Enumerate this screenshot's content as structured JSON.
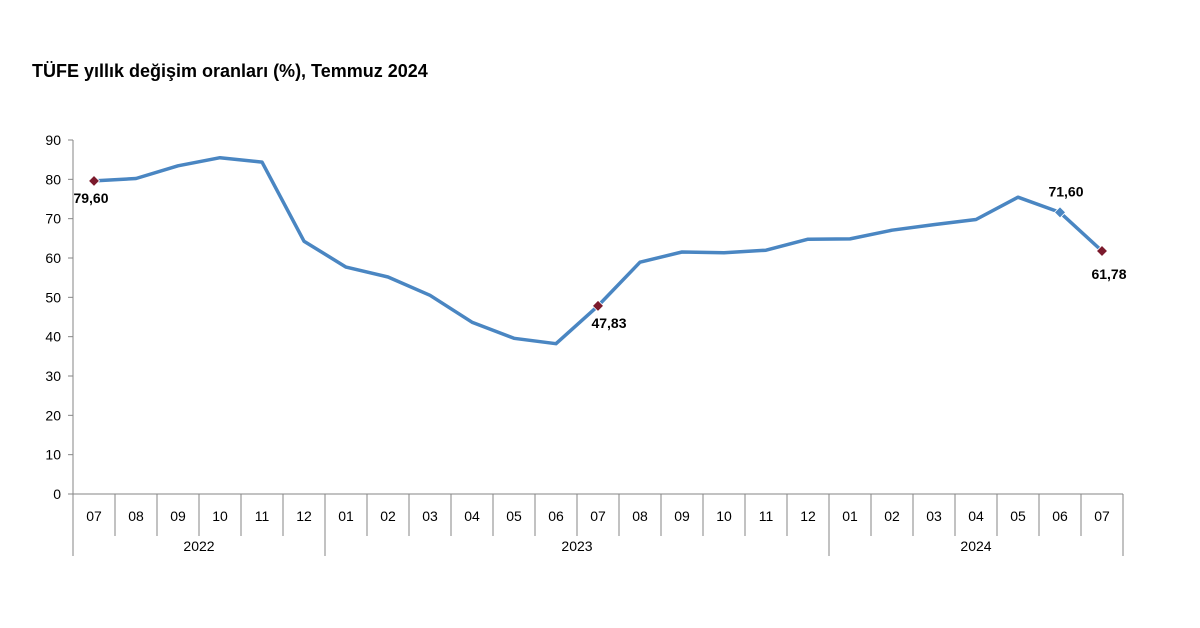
{
  "chart_data": {
    "type": "line",
    "title": "TÜFE yıllık değişim oranları (%), Temmuz 2024",
    "xlabel": "",
    "ylabel": "",
    "ylim": [
      0,
      90
    ],
    "yticks": [
      0,
      10,
      20,
      30,
      40,
      50,
      60,
      70,
      80,
      90
    ],
    "grid": false,
    "legend": "none",
    "categories": [
      "07",
      "08",
      "09",
      "10",
      "11",
      "12",
      "01",
      "02",
      "03",
      "04",
      "05",
      "06",
      "07",
      "08",
      "09",
      "10",
      "11",
      "12",
      "01",
      "02",
      "03",
      "04",
      "05",
      "06",
      "07"
    ],
    "years": [
      {
        "label": "2022",
        "count": 6
      },
      {
        "label": "2023",
        "count": 12
      },
      {
        "label": "2024",
        "count": 7
      }
    ],
    "series": [
      {
        "color": "#4a86c2",
        "values": [
          79.6,
          80.21,
          83.45,
          85.51,
          84.39,
          64.27,
          57.68,
          55.18,
          50.51,
          43.68,
          39.59,
          38.21,
          47.83,
          58.94,
          61.53,
          61.36,
          61.98,
          64.77,
          64.86,
          67.07,
          68.5,
          69.8,
          75.45,
          71.6,
          61.78
        ]
      }
    ],
    "highlighted_points": [
      {
        "index": 0,
        "label": "79,60",
        "marker_color": "#7b1a2c"
      },
      {
        "index": 12,
        "label": "47,83",
        "marker_color": "#7b1a2c"
      },
      {
        "index": 23,
        "label": "71,60",
        "marker_color": "#4a86c2"
      },
      {
        "index": 24,
        "label": "61,78",
        "marker_color": "#7b1a2c"
      }
    ]
  }
}
